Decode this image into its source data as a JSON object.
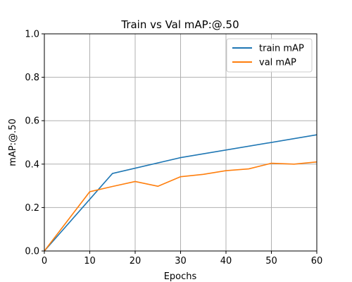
{
  "chart_data": {
    "type": "line",
    "title": "Train vs Val mAP:@.50",
    "xlabel": "Epochs",
    "ylabel": "mAP:@.50",
    "xlim": [
      0,
      60
    ],
    "ylim": [
      0.0,
      1.0
    ],
    "xticks": [
      0,
      10,
      20,
      30,
      40,
      50,
      60
    ],
    "yticks": [
      0.0,
      0.2,
      0.4,
      0.6,
      0.8,
      1.0
    ],
    "xtick_labels": [
      "0",
      "10",
      "20",
      "30",
      "40",
      "50",
      "60"
    ],
    "ytick_labels": [
      "0.0",
      "0.2",
      "0.4",
      "0.6",
      "0.8",
      "1.0"
    ],
    "grid": true,
    "legend_position": "top-right",
    "series": [
      {
        "name": "train mAP",
        "color": "#1f77b4",
        "x": [
          0,
          15,
          30,
          60
        ],
        "y": [
          0.0,
          0.357,
          0.43,
          0.535
        ]
      },
      {
        "name": "val mAP",
        "color": "#ff7f0e",
        "x": [
          0,
          10,
          15,
          20,
          25,
          30,
          35,
          40,
          45,
          50,
          55,
          60
        ],
        "y": [
          0.0,
          0.273,
          0.297,
          0.32,
          0.298,
          0.342,
          0.353,
          0.37,
          0.378,
          0.404,
          0.4,
          0.41
        ]
      }
    ]
  }
}
